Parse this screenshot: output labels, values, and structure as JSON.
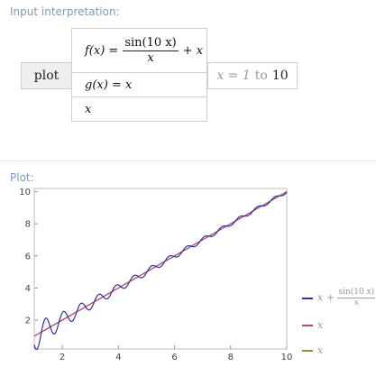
{
  "input_pod": {
    "title": "Input interpretation:",
    "command": "plot",
    "f_lhs": "f(x) =",
    "f_numerator": "sin(10 x)",
    "f_denominator": "x",
    "f_plus": "+ x",
    "g_def": "g(x) = x",
    "third_row": "x",
    "range_var": "x = 1",
    "range_to": "to",
    "range_end": "10"
  },
  "plot_pod": {
    "title": "Plot:",
    "legend": [
      {
        "prefix": "x +",
        "numerator": "sin(10 x)",
        "denominator": "x",
        "color": "#2f3593"
      },
      {
        "label": "x",
        "color": "#b24a72"
      },
      {
        "label": "x",
        "color": "#a08a2e"
      }
    ]
  },
  "chart_data": {
    "type": "line",
    "x_ticks": [
      "2",
      "4",
      "6",
      "8",
      "10"
    ],
    "y_ticks": [
      "2",
      "4",
      "6",
      "8",
      "10"
    ],
    "xlim": [
      1,
      10
    ],
    "ylim": [
      0.2,
      10.2
    ],
    "series": [
      {
        "name": "x + sin(10 x)/x",
        "function": "x + sin(10*x)/x",
        "domain": [
          1,
          10
        ],
        "color": "#2f3593"
      },
      {
        "name": "x",
        "function": "x",
        "domain": [
          1,
          10
        ],
        "color": "#b24a72"
      },
      {
        "name": "x",
        "function": "x",
        "domain": [
          1,
          10
        ],
        "color": "#a08a2e"
      }
    ]
  }
}
